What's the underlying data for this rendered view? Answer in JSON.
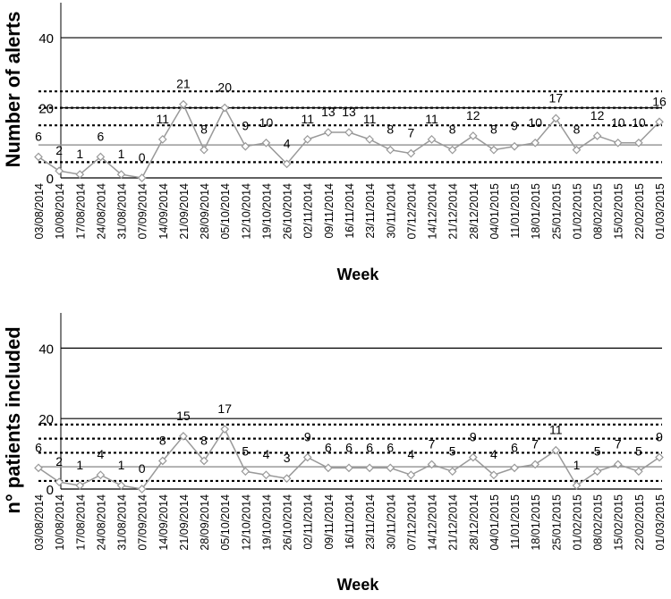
{
  "chart_data": [
    {
      "type": "line",
      "y_label": "Number of alerts",
      "x_label": "Week",
      "categories": [
        "03/08/2014",
        "10/08/2014",
        "17/08/2014",
        "24/08/2014",
        "31/08/2014",
        "07/09/2014",
        "14/09/2014",
        "21/09/2014",
        "28/09/2014",
        "05/10/2014",
        "12/10/2014",
        "19/10/2014",
        "26/10/2014",
        "02/11/2014",
        "09/11/2014",
        "16/11/2014",
        "23/11/2014",
        "30/11/2014",
        "07/12/2014",
        "14/12/2014",
        "21/12/2014",
        "28/12/2014",
        "04/01/2015",
        "11/01/2015",
        "18/01/2015",
        "25/01/2015",
        "01/02/2015",
        "08/02/2015",
        "15/02/2015",
        "22/02/2015",
        "01/03/2015"
      ],
      "series": [
        {
          "color": "#999999",
          "values": [
            6,
            2,
            1,
            6,
            1,
            0,
            11,
            21,
            8,
            20,
            9,
            10,
            4,
            11,
            13,
            13,
            11,
            8,
            7,
            11,
            8,
            12,
            8,
            9,
            10,
            17,
            8,
            12,
            10,
            10,
            16
          ]
        }
      ],
      "ylim": [
        0,
        50
      ],
      "yticks": [
        0,
        20,
        40
      ],
      "grid": true,
      "center_line": 9.4,
      "limit_lines": [
        4.5,
        15,
        20,
        24.7
      ]
    },
    {
      "type": "line",
      "y_label": "n° patients included",
      "x_label": "Week",
      "categories": [
        "03/08/2014",
        "10/08/2014",
        "17/08/2014",
        "24/08/2014",
        "31/08/2014",
        "07/09/2014",
        "14/09/2014",
        "21/09/2014",
        "28/09/2014",
        "05/10/2014",
        "12/10/2014",
        "19/10/2014",
        "26/10/2014",
        "02/11/2014",
        "09/11/2014",
        "16/11/2014",
        "23/11/2014",
        "30/11/2014",
        "07/12/2014",
        "14/12/2014",
        "21/12/2014",
        "28/12/2014",
        "04/01/2015",
        "11/01/2015",
        "18/01/2015",
        "25/01/2015",
        "01/02/2015",
        "08/02/2015",
        "15/02/2015",
        "22/02/2015",
        "01/03/2015"
      ],
      "series": [
        {
          "color": "#999999",
          "values": [
            6,
            2,
            1,
            4,
            1,
            0,
            8,
            15,
            8,
            17,
            5,
            4,
            3,
            9,
            6,
            6,
            6,
            6,
            4,
            7,
            5,
            9,
            4,
            6,
            7,
            11,
            1,
            5,
            7,
            5,
            9
          ]
        }
      ],
      "ylim": [
        0,
        50
      ],
      "yticks": [
        0,
        20,
        40
      ],
      "grid": true,
      "center_line": 6.3,
      "limit_lines": [
        2.3,
        10.3,
        14.3,
        18.3
      ]
    }
  ]
}
